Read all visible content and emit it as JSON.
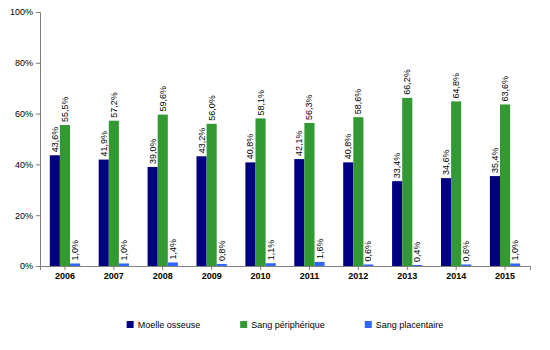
{
  "chart_data": {
    "type": "bar",
    "categories": [
      "2006",
      "2007",
      "2008",
      "2009",
      "2010",
      "2011",
      "2012",
      "2013",
      "2014",
      "2015"
    ],
    "series": [
      {
        "name": "Moelle osseuse",
        "color": "#000080",
        "values": [
          43.6,
          41.9,
          39.0,
          43.2,
          40.8,
          42.1,
          40.8,
          33.4,
          34.6,
          35.4
        ],
        "value_labels": [
          "43,6%",
          "41,9%",
          "39,0%",
          "43,2%",
          "40,8%",
          "42,1%",
          "40,8%",
          "33,4%",
          "34,6%",
          "35,4%"
        ]
      },
      {
        "name": "Sang périphérique",
        "color": "#339933",
        "values": [
          55.5,
          57.2,
          59.6,
          56.0,
          58.1,
          56.3,
          58.6,
          66.2,
          64.8,
          63.6
        ],
        "value_labels": [
          "55,5%",
          "57,2%",
          "59,6%",
          "56,0%",
          "58,1%",
          "56,3%",
          "58,6%",
          "66,2%",
          "64,8%",
          "63,6%"
        ]
      },
      {
        "name": "Sang placentaire",
        "color": "#3366ff",
        "values": [
          1.0,
          1.0,
          1.4,
          0.8,
          1.1,
          1.6,
          0.6,
          0.4,
          0.6,
          1.0
        ],
        "value_labels": [
          "1,0%",
          "1,0%",
          "1,4%",
          "0,8%",
          "1,1%",
          "1,6%",
          "0,6%",
          "0,4%",
          "0,6%",
          "1,0%"
        ]
      }
    ],
    "ylim": [
      0,
      100
    ],
    "yticks": [
      {
        "value": 0,
        "label": "0%"
      },
      {
        "value": 20,
        "label": "20%"
      },
      {
        "value": 40,
        "label": "40%"
      },
      {
        "value": 60,
        "label": "60%"
      },
      {
        "value": 80,
        "label": "80%"
      },
      {
        "value": 100,
        "label": "100%"
      }
    ],
    "grid": false,
    "legend": "bottom",
    "data_labels": true
  }
}
